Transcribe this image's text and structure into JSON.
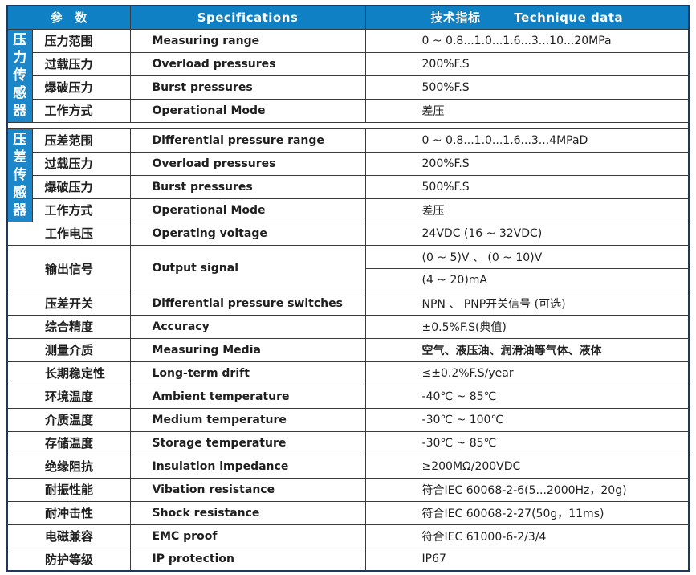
{
  "colors": {
    "header_bg": "#0f80c4",
    "side_label_bg": "#1b86ca",
    "outer_border": "#20375c",
    "inner_border": "#3a3a3a",
    "text": "#1f1f1f"
  },
  "header": {
    "params": "参　数",
    "specifications": "Specifications",
    "tech_cn": "技术指标",
    "tech_en": "Technique data"
  },
  "side_labels": [
    {
      "id": "pressure-sensor",
      "text": "压力传感器"
    },
    {
      "id": "diff-pressure-sensor",
      "text": "压差传感器"
    }
  ],
  "rows": [
    {
      "cn": "压力范围",
      "en": "Measuring range",
      "values": [
        "0 ~ 0.8...1.0...1.6...3...10...20MPa"
      ]
    },
    {
      "cn": "过载压力",
      "en": "Overload pressures",
      "values": [
        "200%F.S"
      ]
    },
    {
      "cn": "爆破压力",
      "en": "Burst pressures",
      "values": [
        "500%F.S"
      ]
    },
    {
      "cn": "工作方式",
      "en": "Operational Mode",
      "values": [
        "差压"
      ]
    },
    {
      "cn": "压差范围",
      "en": "Differential pressure range",
      "values": [
        "0 ~ 0.8...1.0...1.6...3...4MPaD"
      ]
    },
    {
      "cn": "过载压力",
      "en": "Overload pressures",
      "values": [
        "200%F.S"
      ]
    },
    {
      "cn": "爆破压力",
      "en": "Burst pressures",
      "values": [
        "500%F.S"
      ]
    },
    {
      "cn": "工作方式",
      "en": "Operational Mode",
      "values": [
        "差压"
      ]
    },
    {
      "cn": "工作电压",
      "en": "Operating voltage",
      "values": [
        "24VDC (16 ~ 32VDC)"
      ]
    },
    {
      "cn": "输出信号",
      "en": "Output signal",
      "values": [
        "(0 ~ 5)V 、 (0 ~ 10)V",
        "(4 ~ 20)mA"
      ]
    },
    {
      "cn": "压差开关",
      "en": "Differential pressure switches",
      "values": [
        "NPN 、 PNP开关信号 (可选)"
      ]
    },
    {
      "cn": "综合精度",
      "en": "Accuracy",
      "values": [
        "±0.5%F.S(典值)"
      ]
    },
    {
      "cn": "测量介质",
      "en": "Measuring Media",
      "values": [
        "空气、液压油、润滑油等气体、液体"
      ],
      "value_bold": true
    },
    {
      "cn": "长期稳定性",
      "en": "Long-term drift",
      "values": [
        "≤±0.2%F.S/year"
      ]
    },
    {
      "cn": "环境温度",
      "en": "Ambient temperature",
      "values": [
        "-40℃ ~ 85℃"
      ]
    },
    {
      "cn": "介质温度",
      "en": "Medium temperature",
      "values": [
        "-30℃ ~ 100℃"
      ]
    },
    {
      "cn": "存储温度",
      "en": "Storage temperature",
      "values": [
        "-30℃ ~ 85℃"
      ]
    },
    {
      "cn": "绝缘阻抗",
      "en": "Insulation impedance",
      "values": [
        "≥200MΩ/200VDC"
      ]
    },
    {
      "cn": "耐振性能",
      "en": "Vibation resistance",
      "values": [
        "符合IEC 60068-2-6(5...2000Hz，20g)"
      ]
    },
    {
      "cn": "耐冲击性",
      "en": "Shock   resistance",
      "values": [
        "符合IEC 60068-2-27(50g，11ms)"
      ]
    },
    {
      "cn": "电磁兼容",
      "en": "EMC proof",
      "values": [
        "符合IEC 61000-6-2/3/4"
      ]
    },
    {
      "cn": "防护等级",
      "en": "IP protection",
      "values": [
        "IP67"
      ]
    }
  ]
}
